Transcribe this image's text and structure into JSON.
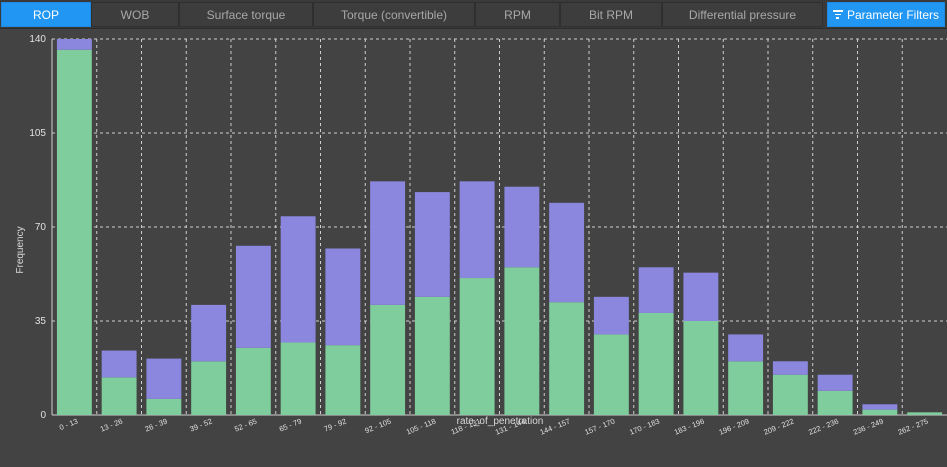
{
  "tabs": [
    {
      "label": "ROP",
      "active": true
    },
    {
      "label": "WOB"
    },
    {
      "label": "Surface torque"
    },
    {
      "label": "Torque (convertible)"
    },
    {
      "label": "RPM"
    },
    {
      "label": "Bit RPM"
    },
    {
      "label": "Differential pressure"
    }
  ],
  "filter_button": {
    "label": "Parameter Filters",
    "icon": "filter-icon"
  },
  "chart_data": {
    "type": "bar",
    "stacked": true,
    "xlabel": "rate_of_penetration",
    "ylabel": "Frequency",
    "ylim": [
      0,
      140
    ],
    "yticks": [
      0,
      35,
      70,
      105,
      140
    ],
    "grid": true,
    "categories": [
      "0 - 13",
      "13 - 26",
      "26 - 39",
      "39 - 52",
      "52 - 65",
      "65 - 79",
      "79 - 92",
      "92 - 105",
      "105 - 118",
      "118 - 131",
      "131 - 144",
      "144 - 157",
      "157 - 170",
      "170 - 183",
      "183 - 196",
      "196 - 209",
      "209 - 222",
      "222 - 236",
      "236 - 249",
      "262 - 275"
    ],
    "series": [
      {
        "color": "#7fcc9c",
        "values": [
          136,
          14,
          6,
          20,
          25,
          27,
          26,
          41,
          44,
          51,
          55,
          42,
          30,
          38,
          35,
          20,
          15,
          9,
          2,
          1
        ]
      },
      {
        "color": "#8b87de",
        "values": [
          4,
          10,
          15,
          21,
          38,
          47,
          36,
          46,
          39,
          36,
          30,
          37,
          14,
          17,
          18,
          10,
          5,
          6,
          2,
          0
        ]
      }
    ],
    "colors": {
      "background": "#434343",
      "grid": "#cfcfcf",
      "axis": "#d0d0d0"
    }
  }
}
